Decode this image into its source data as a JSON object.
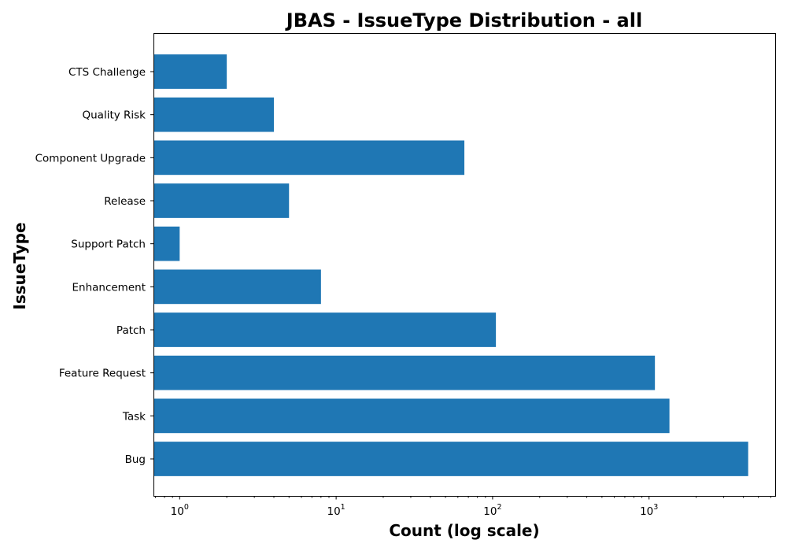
{
  "chart_data": {
    "type": "bar",
    "orientation": "horizontal",
    "title": "JBAS - IssueType Distribution - all",
    "xlabel": "Count (log scale)",
    "ylabel": "IssueType",
    "x_scale": "log",
    "xlim": [
      0.68,
      6400
    ],
    "x_ticks": [
      {
        "value": 1,
        "base": "10",
        "exp": "0"
      },
      {
        "value": 10,
        "base": "10",
        "exp": "1"
      },
      {
        "value": 100,
        "base": "10",
        "exp": "2"
      },
      {
        "value": 1000,
        "base": "10",
        "exp": "3"
      }
    ],
    "categories": [
      "Bug",
      "Task",
      "Feature Request",
      "Patch",
      "Enhancement",
      "Support Patch",
      "Release",
      "Component Upgrade",
      "Quality Risk",
      "CTS Challenge"
    ],
    "values": [
      4300,
      1350,
      1090,
      105,
      8,
      1,
      5,
      66,
      4,
      2
    ],
    "color": "#1f77b4",
    "grid": false,
    "legend": "none"
  }
}
